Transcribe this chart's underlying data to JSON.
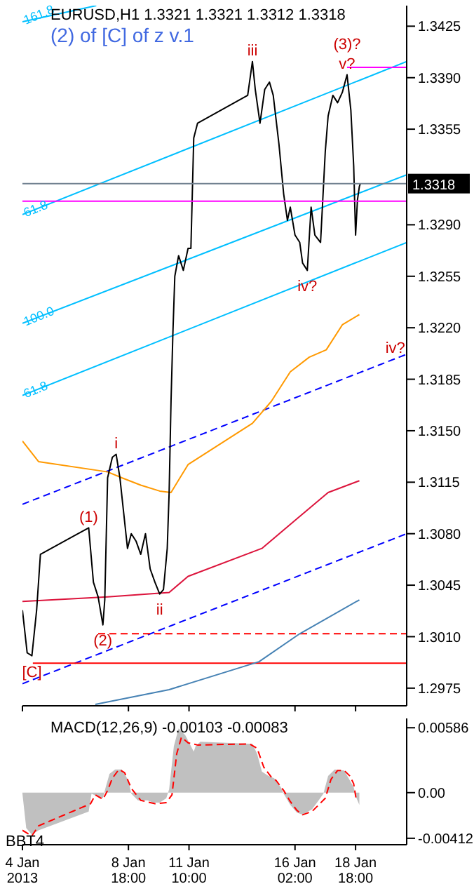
{
  "chart_data": [
    {
      "type": "line",
      "title": "EURUSD,H1 1.3321 1.3321 1.3312 1.3318",
      "subtitle": "(2) of [C] of z v.1",
      "xlim": [
        "2013-01-04T02:00",
        "2013-01-21T00:00"
      ],
      "xticks": [
        {
          "value": "2013-01-04T02:00",
          "label": null
        },
        {
          "value": "2013-01-08T18:00",
          "label": null
        },
        {
          "value": "2013-01-11T10:00",
          "label": null
        },
        {
          "value": "2013-01-16T02:00",
          "label": null
        },
        {
          "value": "2013-01-18T18:00",
          "label": null
        }
      ],
      "tick_labels": "y",
      "ylim": [
        1.2963,
        1.3439
      ],
      "yticks": [
        1.2975,
        {
          "value": 1.301,
          "label": "1.3010"
        },
        1.3045,
        {
          "value": 1.308,
          "label": "1.3080"
        },
        1.3115,
        {
          "value": 1.315,
          "label": "1.3150"
        },
        1.3185,
        {
          "value": 1.322,
          "label": "1.3220"
        },
        1.3255,
        {
          "value": 1.329,
          "label": "1.3290"
        },
        1.3355,
        {
          "value": 1.339,
          "label": "1.3390"
        },
        1.3425
      ],
      "series": [
        {
          "color": "#00bfff",
          "name": "161.8",
          "x": [
            "2013-01-04T02:00",
            "2013-01-07T08:00"
          ],
          "values": [
            1.3428,
            1.3439
          ]
        },
        {
          "color": "#00bfff",
          "name": "61.8",
          "x": [
            "2013-01-04T02:00",
            "2013-01-21T00:00"
          ],
          "values": [
            1.3297,
            1.3401
          ]
        },
        {
          "color": "#00bfff",
          "name": "100.0",
          "x": [
            "2013-01-04T02:00",
            "2013-01-21T00:00"
          ],
          "values": [
            1.3223,
            1.3324
          ]
        },
        {
          "color": "#00bfff",
          "name": "61.8",
          "x": [
            "2013-01-04T02:00",
            "2013-01-21T00:00"
          ],
          "values": [
            1.3174,
            1.3278
          ]
        },
        {
          "color": "#0000ff",
          "line_style": "dashed",
          "x": [
            "2013-01-04T02:00",
            "2013-01-21T00:00"
          ],
          "values": [
            1.31,
            1.3202
          ]
        },
        {
          "color": "#0000ff",
          "line_style": "dashed",
          "x": [
            "2013-01-04T02:00",
            "2013-01-21T00:00"
          ],
          "values": [
            1.2978,
            1.308
          ]
        },
        {
          "color": "#ff0000",
          "line_style": "dashed",
          "x": [
            "2013-01-07T10:00",
            "2013-01-21T00:00"
          ],
          "values": [
            1.3012,
            1.3012
          ]
        },
        {
          "color": "#ff0000",
          "x": [
            "2013-01-04T13:00",
            "2013-01-21T00:00"
          ],
          "values": [
            1.2992,
            1.2992
          ]
        },
        {
          "color": "#ff00ff",
          "x": [
            "2013-01-18T09:00",
            "2013-01-21T00:00"
          ],
          "values": [
            1.3397,
            1.3397
          ]
        },
        {
          "color": "#ff9900",
          "x": [
            "2013-01-04T02:00",
            "2013-01-04T19:00",
            "2013-01-07T20:00",
            "2013-01-08T11:00",
            "2013-01-09T07:00",
            "2013-01-10T03:00",
            "2013-01-10T15:00",
            "2013-01-11T09:00",
            "2013-01-14T05:00",
            "2013-01-15T01:00",
            "2013-01-15T21:00",
            "2013-01-16T17:00",
            "2013-01-17T11:00",
            "2013-01-18T04:00",
            "2013-01-18T22:00"
          ],
          "values": [
            1.3143,
            1.3129,
            1.3122,
            1.3118,
            1.3113,
            1.3109,
            1.3108,
            1.3127,
            1.3155,
            1.317,
            1.319,
            1.32,
            1.3205,
            1.3222,
            1.3229
          ]
        },
        {
          "color": "#dc143c",
          "x": [
            "2013-01-04T02:00",
            "2013-01-07T20:00",
            "2013-01-10T13:00",
            "2013-01-11T09:00",
            "2013-01-14T15:00",
            "2013-01-16T02:00",
            "2013-01-17T13:00",
            "2013-01-18T22:00"
          ],
          "values": [
            1.3034,
            1.3037,
            1.304,
            1.3051,
            1.307,
            1.3089,
            1.3108,
            1.3116
          ]
        },
        {
          "color": "#4682b4",
          "x": [
            "2013-01-07T07:00",
            "2013-01-10T13:00",
            "2013-01-14T12:00",
            "2013-01-16T07:00",
            "2013-01-18T22:00"
          ],
          "values": [
            1.2964,
            1.2974,
            1.2993,
            1.3012,
            1.3035
          ]
        },
        {
          "color": "#000000",
          "x": [
            "2013-01-04T02:00",
            "2013-01-04T07:00",
            "2013-01-04T12:00",
            "2013-01-04T17:00",
            "2013-01-04T21:00",
            "2013-01-07T00:00",
            "2013-01-07T05:00",
            "2013-01-07T10:00",
            "2013-01-07T15:00",
            "2013-01-07T17:00",
            "2013-01-07T20:00",
            "2013-01-08T01:00",
            "2013-01-08T05:00",
            "2013-01-08T09:00",
            "2013-01-08T13:00",
            "2013-01-08T17:00",
            "2013-01-08T21:00",
            "2013-01-09T02:00",
            "2013-01-09T07:00",
            "2013-01-09T12:00",
            "2013-01-09T17:00",
            "2013-01-09T22:00",
            "2013-01-10T03:00",
            "2013-01-10T07:00",
            "2013-01-10T11:00",
            "2013-01-10T13:00",
            "2013-01-10T15:00",
            "2013-01-10T17:00",
            "2013-01-10T19:00",
            "2013-01-10T23:00",
            "2013-01-11T04:00",
            "2013-01-11T09:00",
            "2013-01-11T12:00",
            "2013-01-11T15:00",
            "2013-01-11T19:00",
            "2013-01-14T00:00",
            "2013-01-14T05:00",
            "2013-01-14T08:00",
            "2013-01-14T13:00",
            "2013-01-14T18:00",
            "2013-01-14T23:00",
            "2013-01-15T03:00",
            "2013-01-15T09:00",
            "2013-01-15T14:00",
            "2013-01-15T18:00",
            "2013-01-15T21:00",
            "2013-01-16T02:00",
            "2013-01-16T07:00",
            "2013-01-16T10:00",
            "2013-01-16T15:00",
            "2013-01-16T19:00",
            "2013-01-16T23:00",
            "2013-01-17T05:00",
            "2013-01-17T10:00",
            "2013-01-17T13:00",
            "2013-01-17T18:00",
            "2013-01-17T23:00",
            "2013-01-18T04:00",
            "2013-01-18T09:00",
            "2013-01-18T13:00",
            "2013-01-18T16:00",
            "2013-01-18T18:00",
            "2013-01-18T20:00",
            "2013-01-18T22:00",
            "2013-01-18T23:00"
          ],
          "values": [
            1.3028,
            1.2999,
            1.2997,
            1.3028,
            1.3066,
            1.3084,
            1.3047,
            1.3037,
            1.3018,
            1.3035,
            1.3118,
            1.3132,
            1.3134,
            1.3118,
            1.3094,
            1.307,
            1.308,
            1.3075,
            1.3066,
            1.308,
            1.3056,
            1.3047,
            1.3039,
            1.3042,
            1.307,
            1.3108,
            1.317,
            1.3217,
            1.3255,
            1.3269,
            1.3259,
            1.3274,
            1.3274,
            1.3349,
            1.3359,
            1.3378,
            1.3401,
            1.3382,
            1.3359,
            1.3382,
            1.3387,
            1.3378,
            1.3345,
            1.3311,
            1.3293,
            1.3302,
            1.3283,
            1.3278,
            1.3264,
            1.3259,
            1.3302,
            1.3283,
            1.3278,
            1.334,
            1.3364,
            1.3378,
            1.3373,
            1.338,
            1.3392,
            1.3368,
            1.333,
            1.3283,
            1.3307,
            1.3316,
            1.3318
          ]
        }
      ],
      "ref_lines": [
        {
          "axis": "y",
          "value": 1.3306,
          "color": "#ff00ff"
        },
        {
          "axis": "y",
          "value": 1.3318,
          "label": "1.3318",
          "color": "#708090"
        }
      ],
      "annotations": [
        {
          "text": "iii",
          "x": "2013-01-14T05:00",
          "y": 1.3401
        },
        {
          "text": "v?",
          "x": "2013-01-18T09:00",
          "y": 1.3392
        },
        {
          "text": "(3)?",
          "x": "2013-01-18T09:00",
          "y": 1.3392
        },
        {
          "text": "iv?",
          "x": "2013-01-16T15:00",
          "y": 1.3259
        },
        {
          "text": "iv?",
          "x": "2013-01-20T12:00",
          "y": 1.3199
        },
        {
          "text": "i",
          "x": "2013-01-08T05:00",
          "y": 1.3134
        },
        {
          "text": "(1)",
          "x": "2013-01-07T00:00",
          "y": 1.3084
        },
        {
          "text": "ii",
          "x": "2013-01-10T03:00",
          "y": 1.3039
        },
        {
          "text": "(2)",
          "x": "2013-01-07T15:00",
          "y": 1.3018
        },
        {
          "text": "[C]",
          "x": "2013-01-04T12:00",
          "y": 1.2997
        }
      ]
    },
    {
      "type": "line",
      "title": "MACD(12,26,9) -0.00103 -0.00083",
      "xlim": [
        "2013-01-04T02:00",
        "2013-01-21T00:00"
      ],
      "xticks": [
        {
          "value": "2013-01-04T02:00",
          "label": "4 Jan 2013"
        },
        {
          "value": "2013-01-08T18:00",
          "label": "8 Jan 18:00"
        },
        {
          "value": "2013-01-11T10:00",
          "label": "11 Jan 10:00"
        },
        {
          "value": "2013-01-16T02:00",
          "label": "16 Jan 02:00"
        },
        {
          "value": "2013-01-18T18:00",
          "label": "18 Jan 18:00"
        }
      ],
      "ylim": [
        -0.0047,
        0.0067
      ],
      "yticks": [
        0.00586,
        {
          "value": 0,
          "label": "0.00"
        },
        -0.00412
      ],
      "series": [
        {
          "type": "area",
          "color": "#c0c0c0",
          "x": [
            "2013-01-04T02:00",
            "2013-01-04T06:00",
            "2013-01-04T12:00",
            "2013-01-04T19:00",
            "2013-01-07T00:00",
            "2013-01-07T03:00",
            "2013-01-07T08:00",
            "2013-01-07T15:00",
            "2013-01-07T18:00",
            "2013-01-07T22:00",
            "2013-01-08T04:00",
            "2013-01-08T11:00",
            "2013-01-08T18:00",
            "2013-01-08T21:00",
            "2013-01-09T04:00",
            "2013-01-09T14:00",
            "2013-01-09T20:00",
            "2013-01-10T03:00",
            "2013-01-10T10:00",
            "2013-01-10T13:00",
            "2013-01-10T18:00",
            "2013-01-10T23:00",
            "2013-01-11T06:00",
            "2013-01-11T15:00",
            "2013-01-11T17:00",
            "2013-01-11T22:00",
            "2013-01-14T05:00",
            "2013-01-14T10:00",
            "2013-01-14T15:00",
            "2013-01-14T22:00",
            "2013-01-15T04:00",
            "2013-01-15T11:00",
            "2013-01-15T14:00",
            "2013-01-15T21:00",
            "2013-01-16T04:00",
            "2013-01-16T10:00",
            "2013-01-16T20:00",
            "2013-01-17T03:00",
            "2013-01-17T08:00",
            "2013-01-17T13:00",
            "2013-01-17T20:00",
            "2013-01-18T06:00",
            "2013-01-18T12:00",
            "2013-01-18T16:00",
            "2013-01-18T19:00",
            "2013-01-18T22:00"
          ],
          "values": [
            -0.0001,
            -0.0032,
            -0.0038,
            -0.0034,
            -0.0017,
            -0.0001,
            -0.0003,
            -0.0005,
            0.0005,
            0.0017,
            0.0021,
            0.0021,
            0.0011,
            -0.0001,
            -0.0007,
            -0.0007,
            -0.0009,
            -0.0009,
            -0.0005,
            0.0003,
            0.0042,
            0.0058,
            0.0052,
            0.0037,
            0.0042,
            0.0046,
            0.0044,
            0.0035,
            0.0019,
            0.0015,
            0.0013,
            0.0005,
            -0.0001,
            -0.0011,
            -0.0018,
            -0.002,
            -0.0015,
            -0.0007,
            -0.0001,
            0.0015,
            0.0021,
            0.002,
            0.0011,
            0.0005,
            -0.0005,
            -0.0011
          ]
        },
        {
          "color": "#ff0000",
          "line_style": "dashed",
          "x": [
            "2013-01-04T02:00",
            "2013-01-04T12:00",
            "2013-01-04T19:00",
            "2013-01-07T02:00",
            "2013-01-07T07:00",
            "2013-01-07T15:00",
            "2013-01-07T20:00",
            "2013-01-08T01:00",
            "2013-01-08T08:00",
            "2013-01-08T14:00",
            "2013-01-08T21:00",
            "2013-01-09T07:00",
            "2013-01-09T22:00",
            "2013-01-10T10:00",
            "2013-01-10T16:00",
            "2013-01-10T21:00",
            "2013-01-11T02:00",
            "2013-01-11T09:00",
            "2013-01-11T19:00",
            "2013-01-14T02:00",
            "2013-01-14T10:00",
            "2013-01-14T17:00",
            "2013-01-15T01:00",
            "2013-01-15T06:00",
            "2013-01-15T14:00",
            "2013-01-15T21:00",
            "2013-01-16T04:00",
            "2013-01-16T10:00",
            "2013-01-16T20:00",
            "2013-01-17T03:00",
            "2013-01-17T10:00",
            "2013-01-17T16:00",
            "2013-01-17T23:00",
            "2013-01-18T06:00",
            "2013-01-18T12:00",
            "2013-01-18T16:00",
            "2013-01-18T19:00"
          ],
          "values": [
            -0.0034,
            -0.0039,
            -0.003,
            -0.001,
            -0.0002,
            -0.0006,
            0.0002,
            0.0013,
            0.0021,
            0.0018,
            0.0004,
            -0.0007,
            -0.001,
            -0.0009,
            -0.0002,
            0.0035,
            0.005,
            0.0045,
            0.0043,
            0.0044,
            0.004,
            0.0023,
            0.0014,
            0.0011,
            0.0002,
            -0.0008,
            -0.0016,
            -0.002,
            -0.0017,
            -0.0011,
            -0.0005,
            0.0012,
            0.002,
            0.002,
            0.0015,
            0.0008,
            -0.0008
          ]
        }
      ],
      "annotations": [
        "BBT4"
      ]
    }
  ]
}
